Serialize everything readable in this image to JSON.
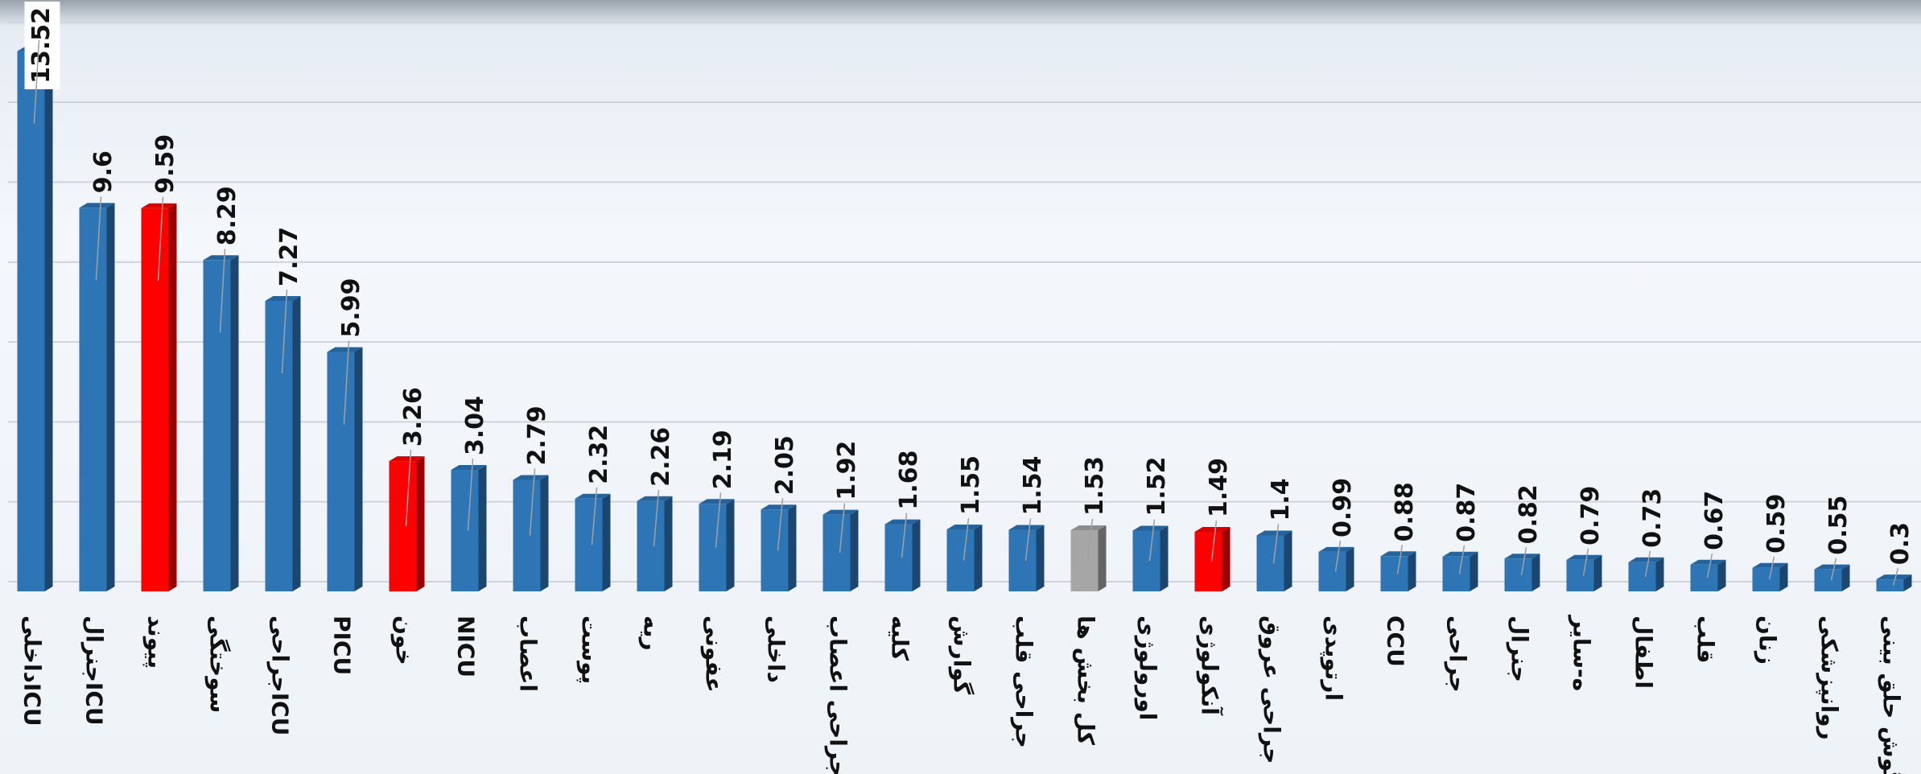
{
  "chart_data": {
    "type": "bar",
    "categories": [
      "داخلیICU",
      "جنرالICU",
      "پیوند",
      "سوختگی",
      "جراحیICU",
      "PICU",
      "خون",
      "NICU",
      "اعصاب",
      "پوست",
      "ریه",
      "عفونی",
      "داخلی",
      "جراحی اعصاب",
      "کلیه",
      "گوارش",
      "جراحی قلب",
      "کل بخش ها",
      "اورولوژی",
      "آنکولوژی",
      "جراحی عروق",
      "ارتوپدی",
      "CCU",
      "جراحی",
      "جنرال",
      "ه-سایر",
      "اطفال",
      "قلب",
      "زنان",
      "روانپزشکی",
      "گوش حلق بینی"
    ],
    "values": [
      13.52,
      9.6,
      9.59,
      8.29,
      7.27,
      5.99,
      3.26,
      3.04,
      2.79,
      2.32,
      2.26,
      2.19,
      2.05,
      1.92,
      1.68,
      1.55,
      1.54,
      1.53,
      1.52,
      1.49,
      1.4,
      0.99,
      0.88,
      0.87,
      0.82,
      0.79,
      0.73,
      0.67,
      0.59,
      0.55,
      0.3
    ],
    "colors": [
      "#2e75b6",
      "#2e75b6",
      "#ff0000",
      "#2e75b6",
      "#2e75b6",
      "#2e75b6",
      "#ff0000",
      "#2e75b6",
      "#2e75b6",
      "#2e75b6",
      "#2e75b6",
      "#2e75b6",
      "#2e75b6",
      "#2e75b6",
      "#2e75b6",
      "#2e75b6",
      "#2e75b6",
      "#a6a6a6",
      "#2e75b6",
      "#ff0000",
      "#2e75b6",
      "#2e75b6",
      "#2e75b6",
      "#2e75b6",
      "#2e75b6",
      "#2e75b6",
      "#2e75b6",
      "#2e75b6",
      "#2e75b6",
      "#2e75b6",
      "#2e75b6"
    ],
    "ylim": [
      0,
      14.8
    ],
    "yticks": [
      0,
      2,
      4,
      6,
      8,
      10,
      12,
      14
    ],
    "grid": true
  }
}
